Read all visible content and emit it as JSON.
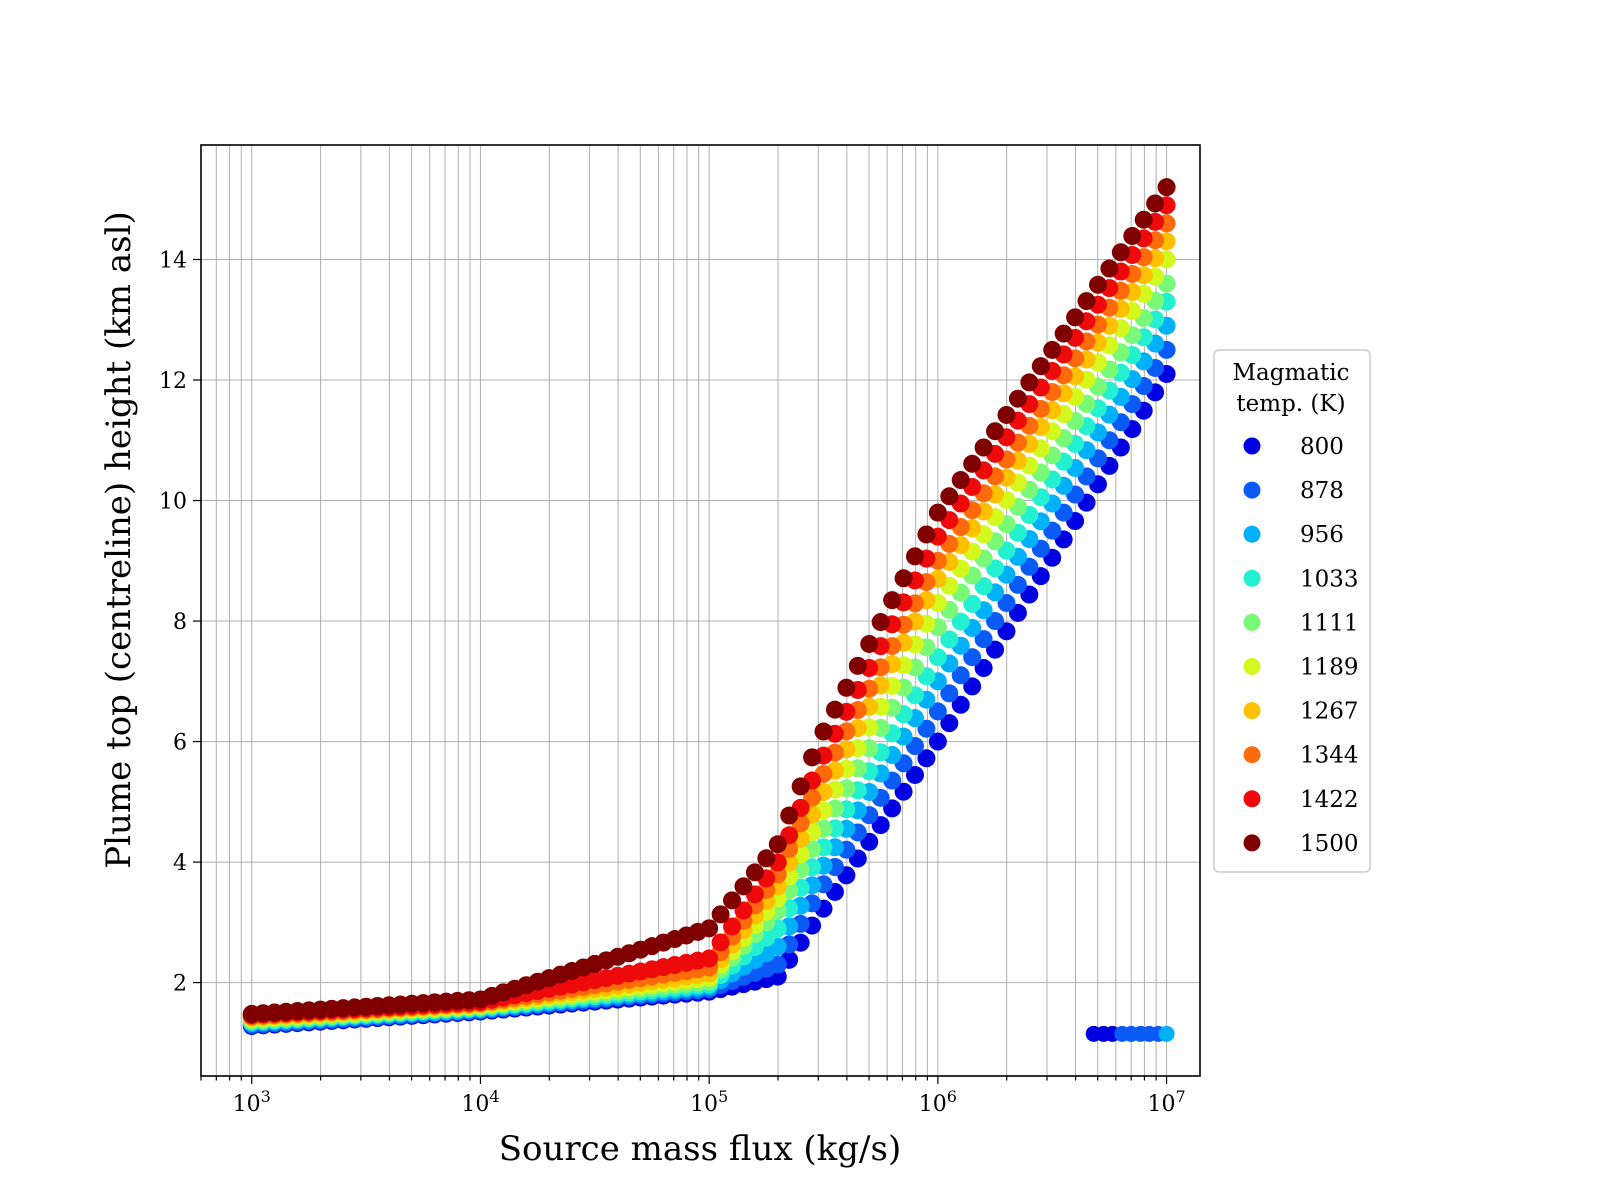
{
  "chart_data": {
    "type": "scatter",
    "xlabel": "Source mass flux (kg/s)",
    "ylabel": "Plume top (centreline) height (km asl)",
    "xscale": "log",
    "xlim": [
      600,
      14000000
    ],
    "ylim": [
      0.45,
      15.9
    ],
    "x_ticks": [
      {
        "value": 1000,
        "base": "10",
        "exp": "3"
      },
      {
        "value": 10000,
        "base": "10",
        "exp": "4"
      },
      {
        "value": 100000,
        "base": "10",
        "exp": "5"
      },
      {
        "value": 1000000,
        "base": "10",
        "exp": "6"
      },
      {
        "value": 10000000,
        "base": "10",
        "exp": "7"
      }
    ],
    "y_ticks": [
      2,
      4,
      6,
      8,
      10,
      12,
      14
    ],
    "grid": "major and minor on x, major on y",
    "legend": {
      "placement": "outside-right",
      "title_lines": [
        "Magmatic",
        "temp. (K)"
      ]
    },
    "x_range_points": [
      1000,
      10000000
    ],
    "points_per_decade": 20,
    "series": [
      {
        "name": "800",
        "color": "#0000e0",
        "x": [
          1000,
          10000,
          100000,
          200000,
          300000,
          1000000,
          10000000
        ],
        "y": [
          1.28,
          1.52,
          1.85,
          2.1,
          3.1,
          6.0,
          12.1
        ]
      },
      {
        "name": "878",
        "color": "#0a5af5",
        "x": [
          1000,
          10000,
          100000,
          200000,
          300000,
          1000000,
          10000000
        ],
        "y": [
          1.3,
          1.54,
          1.89,
          2.3,
          3.5,
          6.5,
          12.5
        ]
      },
      {
        "name": "956",
        "color": "#00b0f8",
        "x": [
          1000,
          10000,
          100000,
          200000,
          300000,
          1000000,
          10000000
        ],
        "y": [
          1.33,
          1.56,
          1.93,
          2.6,
          3.8,
          7.0,
          12.9
        ]
      },
      {
        "name": "1033",
        "color": "#22f0d0",
        "x": [
          1000,
          10000,
          100000,
          200000,
          300000,
          1000000,
          10000000
        ],
        "y": [
          1.35,
          1.58,
          1.97,
          2.9,
          4.1,
          7.4,
          13.3
        ]
      },
      {
        "name": "1111",
        "color": "#78fa78",
        "x": [
          1000,
          10000,
          100000,
          200000,
          300000,
          1000000,
          10000000
        ],
        "y": [
          1.37,
          1.6,
          2.02,
          3.2,
          4.4,
          7.9,
          13.6
        ]
      },
      {
        "name": "1189",
        "color": "#d2f81e",
        "x": [
          1000,
          10000,
          100000,
          200000,
          300000,
          1000000,
          10000000
        ],
        "y": [
          1.4,
          1.62,
          2.08,
          3.4,
          4.7,
          8.3,
          14.0
        ]
      },
      {
        "name": "1267",
        "color": "#ffc000",
        "x": [
          1000,
          10000,
          100000,
          200000,
          300000,
          1000000,
          10000000
        ],
        "y": [
          1.42,
          1.64,
          2.15,
          3.6,
          5.0,
          8.7,
          14.3
        ]
      },
      {
        "name": "1344",
        "color": "#ff6a0a",
        "x": [
          1000,
          10000,
          100000,
          200000,
          300000,
          1000000,
          10000000
        ],
        "y": [
          1.44,
          1.66,
          2.25,
          3.8,
          5.3,
          9.0,
          14.6
        ]
      },
      {
        "name": "1422",
        "color": "#ee0a0a",
        "x": [
          1000,
          10000,
          100000,
          200000,
          300000,
          1000000,
          10000000
        ],
        "y": [
          1.46,
          1.68,
          2.4,
          4.0,
          5.6,
          9.4,
          14.9
        ]
      },
      {
        "name": "1500",
        "color": "#800000",
        "x": [
          1000,
          10000,
          100000,
          200000,
          300000,
          1000000,
          10000000
        ],
        "y": [
          1.48,
          1.72,
          2.9,
          4.3,
          6.0,
          9.8,
          15.2
        ]
      }
    ],
    "outlier_points": [
      {
        "x": 4800000,
        "y": 1.15,
        "color": "#0000e0"
      },
      {
        "x": 5300000,
        "y": 1.15,
        "color": "#0000e0"
      },
      {
        "x": 5800000,
        "y": 1.15,
        "color": "#0000e0"
      },
      {
        "x": 6400000,
        "y": 1.15,
        "color": "#0a5af5"
      },
      {
        "x": 7000000,
        "y": 1.15,
        "color": "#0a5af5"
      },
      {
        "x": 7700000,
        "y": 1.15,
        "color": "#0a5af5"
      },
      {
        "x": 8400000,
        "y": 1.15,
        "color": "#0a5af5"
      },
      {
        "x": 9200000,
        "y": 1.15,
        "color": "#0a5af5"
      },
      {
        "x": 10000000,
        "y": 1.15,
        "color": "#00b0f8"
      }
    ]
  }
}
